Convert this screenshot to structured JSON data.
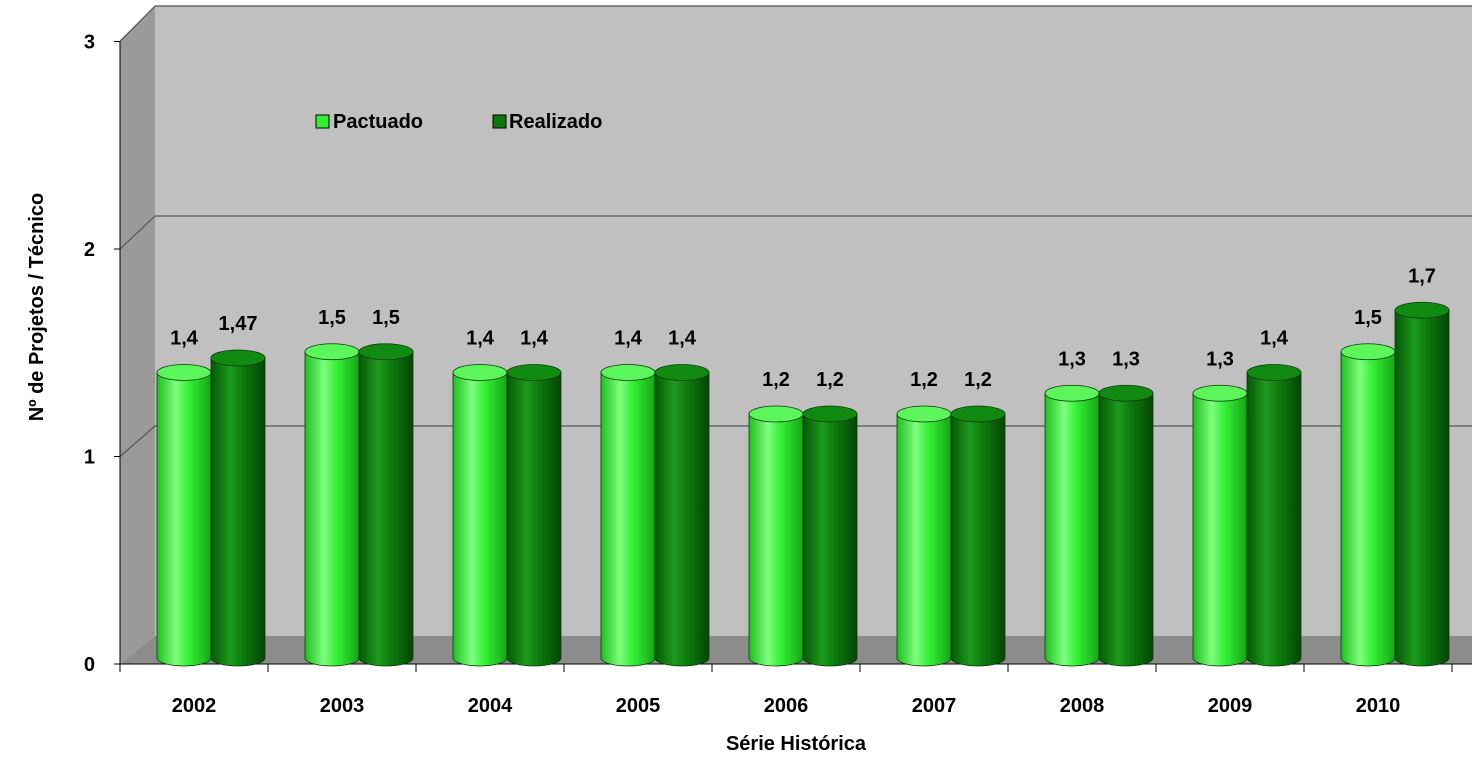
{
  "chart_data": {
    "type": "bar",
    "title": "",
    "xlabel": "Série Histórica",
    "ylabel": "Nº de Projetos / Técnico",
    "ylim": [
      0,
      3
    ],
    "yticks": [
      "0",
      "1",
      "2",
      "3"
    ],
    "grid": true,
    "legend_position": "top-left",
    "categories": [
      "2002",
      "2003",
      "2004",
      "2005",
      "2006",
      "2007",
      "2008",
      "2009",
      "2010"
    ],
    "series": [
      {
        "name": "Pactuado",
        "color": "#33ee33",
        "values": [
          1.4,
          1.5,
          1.4,
          1.4,
          1.2,
          1.2,
          1.3,
          1.3,
          1.5
        ],
        "labels": [
          "1,4",
          "1,5",
          "1,4",
          "1,4",
          "1,2",
          "1,2",
          "1,3",
          "1,3",
          "1,5"
        ]
      },
      {
        "name": "Realizado",
        "color": "#0b7a0b",
        "values": [
          1.47,
          1.5,
          1.4,
          1.4,
          1.2,
          1.2,
          1.3,
          1.4,
          1.7
        ],
        "labels": [
          "1,47",
          "1,5",
          "1,4",
          "1,4",
          "1,2",
          "1,2",
          "1,3",
          "1,4",
          "1,7"
        ]
      }
    ]
  }
}
